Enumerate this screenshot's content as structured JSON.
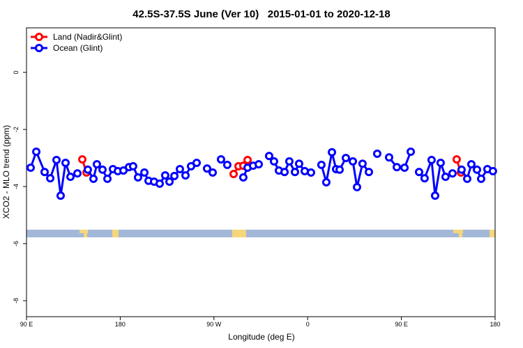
{
  "chart_data": {
    "type": "line",
    "title": "42.5S-37.5S June (Ver 10)   2015-01-01 to 2020-12-18",
    "xlabel": "Longitude (deg E)",
    "ylabel": "XCO2 - MLO trend (ppm)",
    "xlim": [
      90,
      540
    ],
    "ylim": [
      -8.56,
      1.56
    ],
    "xticks": [
      {
        "value": 90,
        "label": "90 E"
      },
      180,
      {
        "value": 270,
        "label": "90 W"
      },
      {
        "value": 360,
        "label": "0"
      },
      {
        "value": 450,
        "label": "90 E"
      },
      {
        "value": 540,
        "label": "180"
      }
    ],
    "yticks": [
      0,
      -2,
      -4,
      -6,
      -8
    ],
    "legend": "top-left",
    "series": [
      {
        "name": "Land (Nadir&Glint)",
        "color": "#ff0000",
        "x": [
          143.6,
          147.6,
          null,
          288.9,
          293.6,
          298.2,
          302.3,
          null,
          503.1,
          507.2
        ],
        "values": [
          -3.05,
          -3.51,
          null,
          -3.56,
          -3.29,
          -3.27,
          -3.07,
          null,
          -3.05,
          -3.51
        ]
      },
      {
        "name": "Ocean (Glint)",
        "color": "#0000ff",
        "x": [
          94.0,
          99.4,
          107.4,
          112.8,
          118.8,
          122.8,
          127.5,
          132.2,
          138.9,
          null,
          148.9,
          154.3,
          157.6,
          163.0,
          167.7,
          173.0,
          177.7,
          183.1,
          188.4,
          192.4,
          197.1,
          203.2,
          207.2,
          212.5,
          217.9,
          223.2,
          227.3,
          232.0,
          237.3,
          242.7,
          248.0,
          253.4,
          null,
          263.4,
          268.8,
          null,
          276.8,
          282.8,
          null,
          298.2,
          302.3,
          307.6,
          313.0,
          null,
          323.0,
          327.7,
          332.4,
          337.8,
          342.4,
          347.8,
          351.8,
          357.2,
          363.2,
          null,
          373.2,
          377.9,
          383.3,
          387.3,
          390.7,
          396.7,
          403.4,
          407.4,
          412.7,
          418.8,
          null,
          426.8,
          null,
          438.2,
          445.6,
          453.0,
          459.0,
          null,
          467.0,
          472.3,
          479.0,
          482.4,
          487.7,
          492.4,
          499.1,
          null,
          507.8,
          513.2,
          517.2,
          522.6,
          526.6,
          532.6,
          537.9
        ],
        "values": [
          -3.34,
          -2.78,
          -3.49,
          -3.71,
          -3.07,
          -4.32,
          -3.17,
          -3.66,
          -3.54,
          null,
          -3.41,
          -3.73,
          -3.22,
          -3.41,
          -3.73,
          -3.39,
          -3.46,
          -3.44,
          -3.32,
          -3.29,
          -3.68,
          -3.51,
          -3.8,
          -3.83,
          -3.9,
          -3.61,
          -3.83,
          -3.63,
          -3.39,
          -3.61,
          -3.29,
          -3.17,
          null,
          -3.37,
          -3.51,
          null,
          -3.05,
          -3.24,
          null,
          -3.68,
          -3.34,
          -3.27,
          -3.22,
          null,
          -2.93,
          -3.12,
          -3.44,
          -3.49,
          -3.12,
          -3.49,
          -3.2,
          -3.46,
          -3.51,
          null,
          -3.24,
          -3.85,
          -2.8,
          -3.39,
          -3.41,
          -3.0,
          -3.12,
          -4.02,
          -3.2,
          -3.49,
          null,
          -2.85,
          null,
          -2.98,
          -3.32,
          -3.34,
          -2.78,
          null,
          -3.49,
          -3.71,
          -3.07,
          -4.32,
          -3.17,
          -3.66,
          -3.54,
          null,
          -3.41,
          -3.73,
          -3.22,
          -3.41,
          -3.73,
          -3.39,
          -3.46
        ]
      }
    ]
  }
}
